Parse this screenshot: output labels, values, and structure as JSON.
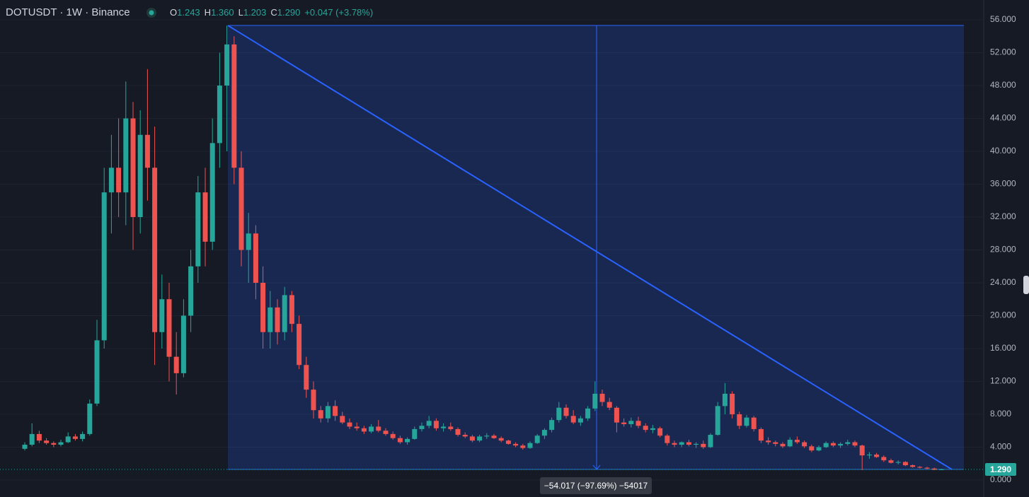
{
  "chart_data": {
    "type": "candlestick",
    "header": {
      "symbol": "DOTUSDT · 1W · Binance",
      "ohlc": [
        {
          "key": "O",
          "value": "1.243"
        },
        {
          "key": "H",
          "value": "1.360"
        },
        {
          "key": "L",
          "value": "1.203"
        },
        {
          "key": "C",
          "value": "1.290"
        }
      ],
      "change": "+0.047 (+3.78%)"
    },
    "up_color": "#26a69a",
    "down_color": "#ef5350",
    "ylim": [
      0,
      56
    ],
    "yticks": [
      {
        "value": 0,
        "label": "0.000"
      },
      {
        "value": 4,
        "label": "4.000"
      },
      {
        "value": 8,
        "label": "8.000"
      },
      {
        "value": 12,
        "label": "12.000"
      },
      {
        "value": 16,
        "label": "16.000"
      },
      {
        "value": 20,
        "label": "20.000"
      },
      {
        "value": 24,
        "label": "24.000"
      },
      {
        "value": 28,
        "label": "28.000"
      },
      {
        "value": 32,
        "label": "32.000"
      },
      {
        "value": 36,
        "label": "36.000"
      },
      {
        "value": 40,
        "label": "40.000"
      },
      {
        "value": 44,
        "label": "44.000"
      },
      {
        "value": 48,
        "label": "48.000"
      },
      {
        "value": 52,
        "label": "52.000"
      },
      {
        "value": 56,
        "label": "56.000"
      }
    ],
    "grid": true,
    "last_price": {
      "value": 1.29,
      "label": "1.290"
    },
    "measure": {
      "start": 55.307,
      "end": 1.29,
      "label": "−54.017 (−97.69%) −54017",
      "color": "#2962ff"
    },
    "candles": [
      [
        3.8,
        4.6,
        3.6,
        4.3
      ],
      [
        4.3,
        6.9,
        4.1,
        5.6
      ],
      [
        5.6,
        6.0,
        4.5,
        4.8
      ],
      [
        4.8,
        5.1,
        4.3,
        4.5
      ],
      [
        4.5,
        4.7,
        4.0,
        4.3
      ],
      [
        4.3,
        4.9,
        4.1,
        4.6
      ],
      [
        4.6,
        5.8,
        4.5,
        5.3
      ],
      [
        5.3,
        5.6,
        4.8,
        5.0
      ],
      [
        5.0,
        5.9,
        4.7,
        5.6
      ],
      [
        5.6,
        9.8,
        5.4,
        9.3
      ],
      [
        9.3,
        19.5,
        9.0,
        17.0
      ],
      [
        17.0,
        38.0,
        16.0,
        35.0
      ],
      [
        35.0,
        42.0,
        30.0,
        38.0
      ],
      [
        38.0,
        44.0,
        32.0,
        35.0
      ],
      [
        35.0,
        48.5,
        31.0,
        44.0
      ],
      [
        44.0,
        46.0,
        28.0,
        32.0
      ],
      [
        32.0,
        45.0,
        30.0,
        42.0
      ],
      [
        42.0,
        50.0,
        34.0,
        38.0
      ],
      [
        38.0,
        43.0,
        14.0,
        18.0
      ],
      [
        18.0,
        25.0,
        16.0,
        22.0
      ],
      [
        22.0,
        24.0,
        12.0,
        15.0
      ],
      [
        15.0,
        18.0,
        10.4,
        13.0
      ],
      [
        13.0,
        22.0,
        12.5,
        20.0
      ],
      [
        20.0,
        28.0,
        18.0,
        26.0
      ],
      [
        26.0,
        37.0,
        24.0,
        35.0
      ],
      [
        35.0,
        38.0,
        26.0,
        29.0
      ],
      [
        29.0,
        44.0,
        28.0,
        41.0
      ],
      [
        41.0,
        52.0,
        38.0,
        48.0
      ],
      [
        48.0,
        55.3,
        40.0,
        53.0
      ],
      [
        53.0,
        54.0,
        36.0,
        38.0
      ],
      [
        38.0,
        40.0,
        26.0,
        28.0
      ],
      [
        28.0,
        32.5,
        24.0,
        30.0
      ],
      [
        30.0,
        31.0,
        22.0,
        24.0
      ],
      [
        24.0,
        26.0,
        16.0,
        18.0
      ],
      [
        18.0,
        23.0,
        16.0,
        21.0
      ],
      [
        21.0,
        22.0,
        16.5,
        18.0
      ],
      [
        18.0,
        23.5,
        17.0,
        22.5
      ],
      [
        22.5,
        23.0,
        18.0,
        19.0
      ],
      [
        19.0,
        20.0,
        13.5,
        14.0
      ],
      [
        14.0,
        15.0,
        10.0,
        11.0
      ],
      [
        11.0,
        12.0,
        7.5,
        8.5
      ],
      [
        8.5,
        9.0,
        7.0,
        7.5
      ],
      [
        7.5,
        9.5,
        7.0,
        9.0
      ],
      [
        9.0,
        9.7,
        7.2,
        7.8
      ],
      [
        7.8,
        8.3,
        6.8,
        7.0
      ],
      [
        7.0,
        7.5,
        6.2,
        6.5
      ],
      [
        6.5,
        7.0,
        6.0,
        6.3
      ],
      [
        6.3,
        6.6,
        5.6,
        5.9
      ],
      [
        5.9,
        6.8,
        5.7,
        6.5
      ],
      [
        6.5,
        7.3,
        5.8,
        6.0
      ],
      [
        6.0,
        6.3,
        5.4,
        5.6
      ],
      [
        5.6,
        5.9,
        4.9,
        5.1
      ],
      [
        5.1,
        5.4,
        4.4,
        4.6
      ],
      [
        4.6,
        5.2,
        4.3,
        5.0
      ],
      [
        5.0,
        6.5,
        4.9,
        6.2
      ],
      [
        6.2,
        7.0,
        5.9,
        6.6
      ],
      [
        6.6,
        7.8,
        6.3,
        7.2
      ],
      [
        7.2,
        7.5,
        6.0,
        6.3
      ],
      [
        6.3,
        6.9,
        5.9,
        6.5
      ],
      [
        6.5,
        7.0,
        6.0,
        6.2
      ],
      [
        6.2,
        6.4,
        5.3,
        5.5
      ],
      [
        5.5,
        5.8,
        5.1,
        5.3
      ],
      [
        5.3,
        5.5,
        4.6,
        4.8
      ],
      [
        4.8,
        5.5,
        4.6,
        5.3
      ],
      [
        5.3,
        5.7,
        5.0,
        5.4
      ],
      [
        5.4,
        5.6,
        5.0,
        5.1
      ],
      [
        5.1,
        5.3,
        4.6,
        4.8
      ],
      [
        4.8,
        4.9,
        4.3,
        4.4
      ],
      [
        4.4,
        4.6,
        4.0,
        4.2
      ],
      [
        4.2,
        4.4,
        3.7,
        3.9
      ],
      [
        3.9,
        4.7,
        3.8,
        4.5
      ],
      [
        4.5,
        5.6,
        4.4,
        5.4
      ],
      [
        5.4,
        6.3,
        5.0,
        6.1
      ],
      [
        6.1,
        7.6,
        5.8,
        7.3
      ],
      [
        7.3,
        9.5,
        7.0,
        8.8
      ],
      [
        8.8,
        9.2,
        7.5,
        7.8
      ],
      [
        7.8,
        8.5,
        6.8,
        7.0
      ],
      [
        7.0,
        7.8,
        6.6,
        7.5
      ],
      [
        7.5,
        9.0,
        7.2,
        8.7
      ],
      [
        8.7,
        12.0,
        8.4,
        10.5
      ],
      [
        10.5,
        11.0,
        9.0,
        9.5
      ],
      [
        9.5,
        10.0,
        8.5,
        8.8
      ],
      [
        8.8,
        9.0,
        5.8,
        7.0
      ],
      [
        7.0,
        7.5,
        6.5,
        6.8
      ],
      [
        6.8,
        7.6,
        6.4,
        7.2
      ],
      [
        7.2,
        7.7,
        6.3,
        6.6
      ],
      [
        6.6,
        6.9,
        5.8,
        6.1
      ],
      [
        6.1,
        6.7,
        5.7,
        6.3
      ],
      [
        6.3,
        6.5,
        5.2,
        5.4
      ],
      [
        5.4,
        5.6,
        4.2,
        4.5
      ],
      [
        4.5,
        4.8,
        4.0,
        4.3
      ],
      [
        4.3,
        4.7,
        4.0,
        4.6
      ],
      [
        4.6,
        4.9,
        4.1,
        4.3
      ],
      [
        4.3,
        4.6,
        3.9,
        4.4
      ],
      [
        4.4,
        4.8,
        3.8,
        4.0
      ],
      [
        4.0,
        5.7,
        3.9,
        5.5
      ],
      [
        5.5,
        9.5,
        5.4,
        9.0
      ],
      [
        9.0,
        11.8,
        8.0,
        10.5
      ],
      [
        10.5,
        10.8,
        7.5,
        8.0
      ],
      [
        8.0,
        8.3,
        6.2,
        6.6
      ],
      [
        6.6,
        7.9,
        6.4,
        7.6
      ],
      [
        7.6,
        7.8,
        5.9,
        6.2
      ],
      [
        6.2,
        6.4,
        4.5,
        4.8
      ],
      [
        4.8,
        5.2,
        4.3,
        4.6
      ],
      [
        4.6,
        4.8,
        4.1,
        4.4
      ],
      [
        4.4,
        4.6,
        3.9,
        4.1
      ],
      [
        4.1,
        5.2,
        4.0,
        4.9
      ],
      [
        4.9,
        5.3,
        4.4,
        4.6
      ],
      [
        4.6,
        4.8,
        3.9,
        4.1
      ],
      [
        4.1,
        4.3,
        3.4,
        3.6
      ],
      [
        3.6,
        4.2,
        3.5,
        4.0
      ],
      [
        4.0,
        4.7,
        3.9,
        4.5
      ],
      [
        4.5,
        4.7,
        4.0,
        4.2
      ],
      [
        4.2,
        4.6,
        3.9,
        4.4
      ],
      [
        4.4,
        4.9,
        4.2,
        4.6
      ],
      [
        4.6,
        4.8,
        4.0,
        4.2
      ],
      [
        4.2,
        4.3,
        1.2,
        3.0
      ],
      [
        3.0,
        3.4,
        2.6,
        3.1
      ],
      [
        3.1,
        3.3,
        2.7,
        2.8
      ],
      [
        2.8,
        3.0,
        2.2,
        2.4
      ],
      [
        2.4,
        2.6,
        2.0,
        2.1
      ],
      [
        2.1,
        2.4,
        1.9,
        2.2
      ],
      [
        2.2,
        2.3,
        1.7,
        1.8
      ],
      [
        1.8,
        1.9,
        1.5,
        1.6
      ],
      [
        1.6,
        1.7,
        1.4,
        1.5
      ],
      [
        1.5,
        1.6,
        1.3,
        1.4
      ],
      [
        1.4,
        1.5,
        1.2,
        1.24
      ],
      [
        1.243,
        1.36,
        1.203,
        1.29
      ]
    ]
  }
}
